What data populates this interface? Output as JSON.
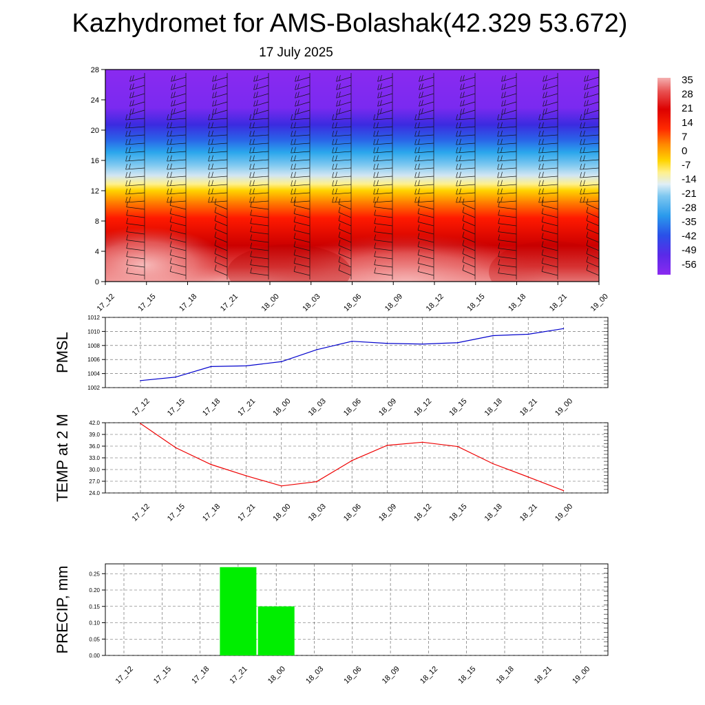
{
  "title": "Kazhydromet for AMS-Bolashak(42.329 53.672)",
  "date": "17 July 2025",
  "time_labels": [
    "17_12",
    "17_15",
    "17_18",
    "17_21",
    "18_00",
    "18_03",
    "18_06",
    "18_09",
    "18_12",
    "18_15",
    "18_18",
    "18_21",
    "19_00"
  ],
  "chart_data": [
    {
      "type": "heatmap",
      "name": "cross-section",
      "yticks": [
        "0",
        "4",
        "8",
        "12",
        "16",
        "20",
        "24",
        "28"
      ],
      "ylim": [
        0,
        28
      ],
      "colorbar": {
        "labels": [
          "35",
          "28",
          "21",
          "14",
          "7",
          "0",
          "-7",
          "-14",
          "-21",
          "-28",
          "-35",
          "-42",
          "-49",
          "-56"
        ],
        "range": [
          -60,
          38
        ]
      }
    },
    {
      "type": "line",
      "ylabel": "PMSL",
      "ylim": [
        1002,
        1012
      ],
      "yticks": [
        "1012",
        "1010",
        "1008",
        "1006",
        "1004",
        "1002"
      ],
      "values": [
        1003.0,
        1003.5,
        1005.0,
        1005.1,
        1005.7,
        1007.4,
        1008.6,
        1008.3,
        1008.2,
        1008.4,
        1009.4,
        1009.6,
        1010.4
      ],
      "color": "#0000cc"
    },
    {
      "type": "line",
      "ylabel": "TEMP at 2 M",
      "ylim": [
        24,
        42
      ],
      "yticks": [
        "42.0",
        "39.0",
        "36.0",
        "33.0",
        "30.0",
        "27.0",
        "24.0"
      ],
      "values": [
        41.8,
        35.6,
        31.3,
        28.4,
        25.8,
        26.9,
        32.3,
        36.2,
        37.0,
        35.9,
        31.5,
        28.1,
        24.6
      ],
      "color": "#ee0000"
    },
    {
      "type": "bar",
      "ylabel": "PRECIP, mm",
      "ylim": [
        0,
        0.28
      ],
      "yticks": [
        "0.25",
        "0.20",
        "0.15",
        "0.10",
        "0.05",
        "0.00"
      ],
      "values": [
        0,
        0,
        0,
        0.27,
        0.15,
        0,
        0,
        0,
        0,
        0,
        0,
        0,
        0
      ],
      "color": "#00ee00"
    }
  ]
}
